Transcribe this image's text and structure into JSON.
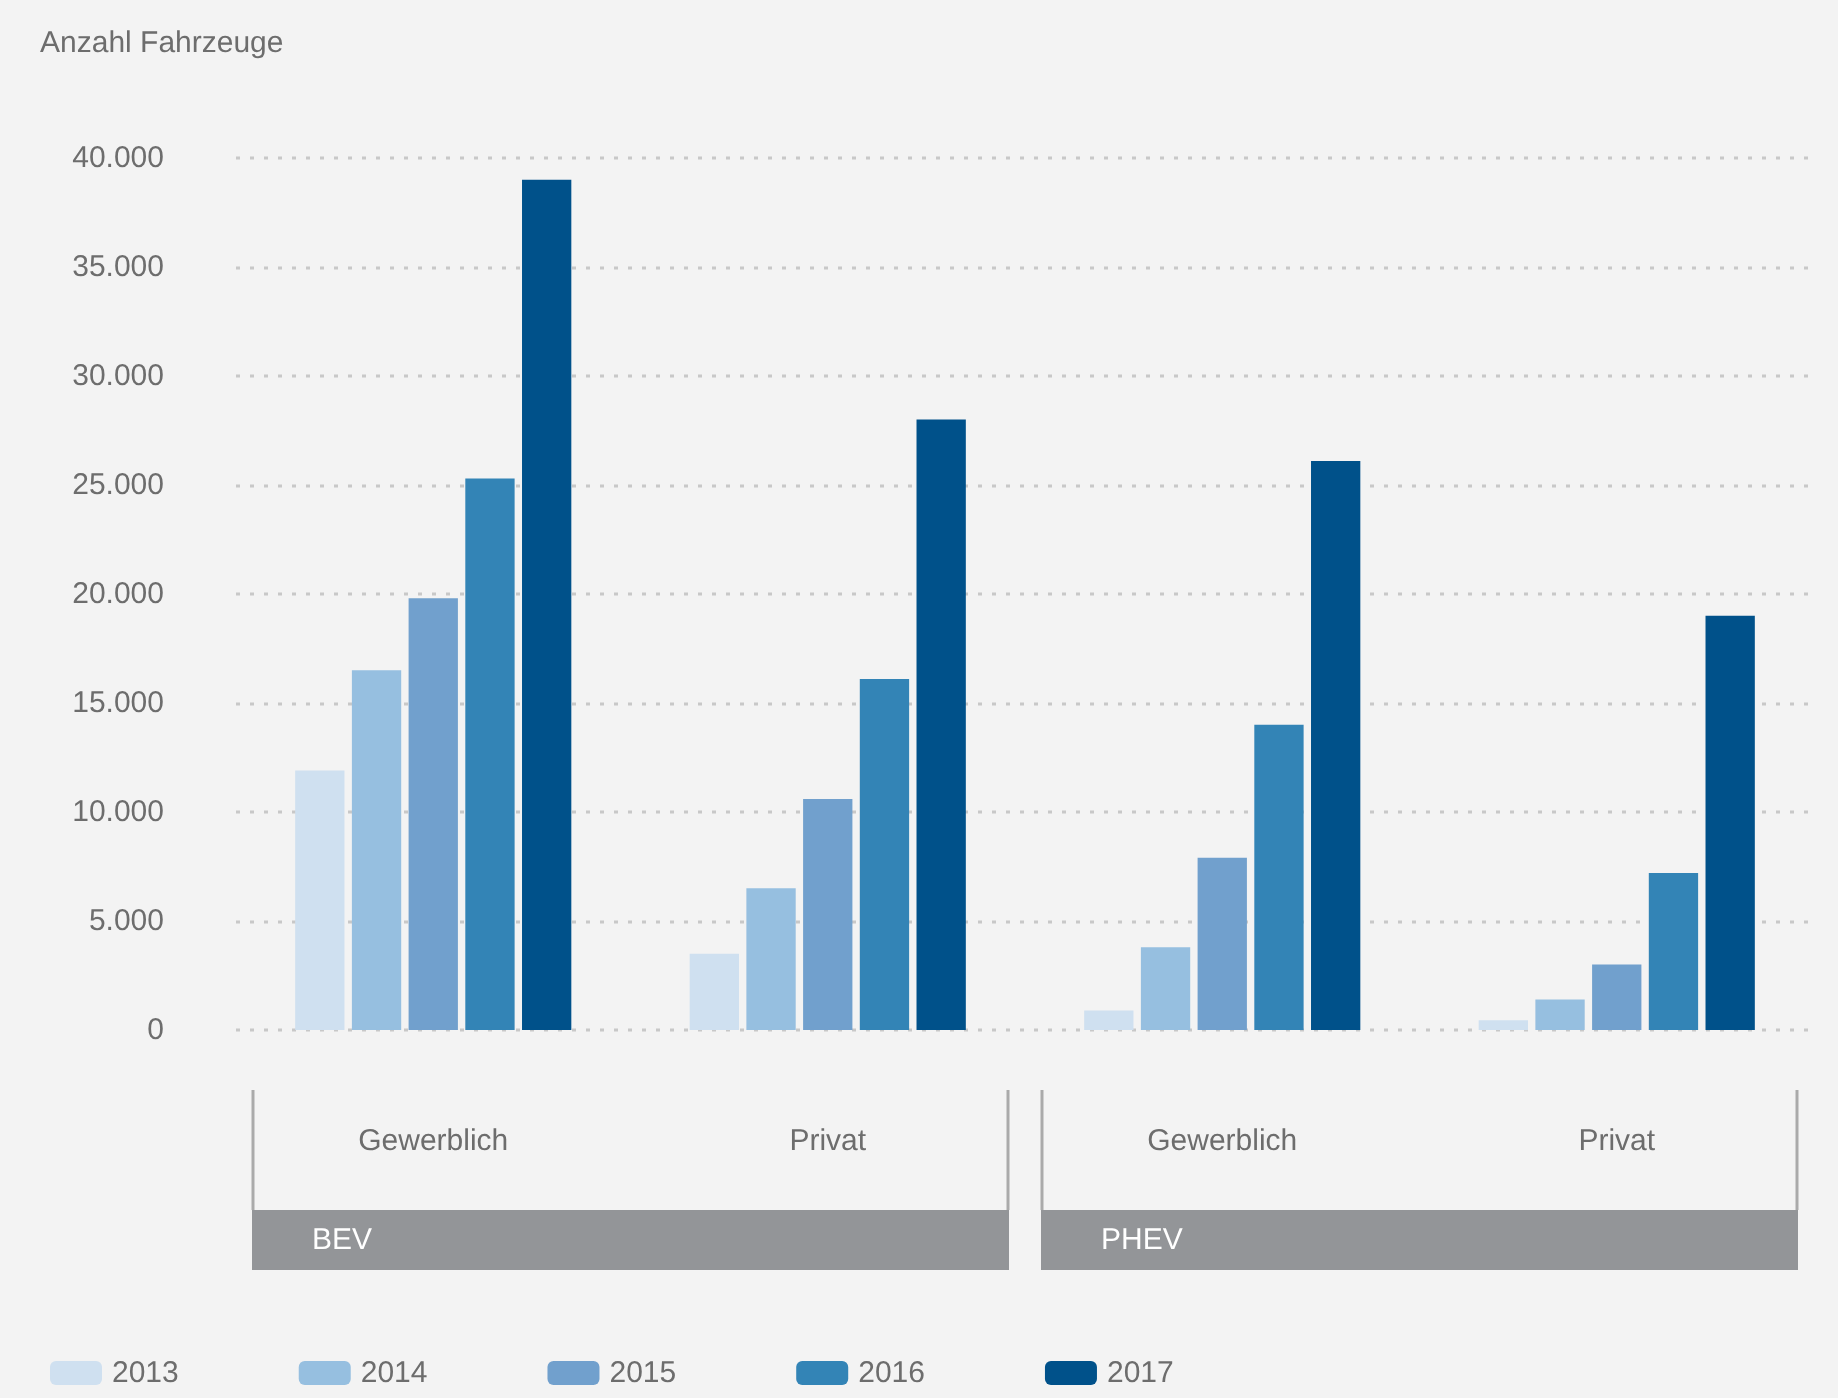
{
  "chart_data": {
    "type": "bar",
    "ylabel": "Anzahl Fahrzeuge",
    "categories": [
      "Gewerblich",
      "Privat",
      "Gewerblich",
      "Privat"
    ],
    "annotations": [
      "BEV",
      "PHEV"
    ],
    "series": [
      {
        "name": "2013",
        "color": "#cfe0f0",
        "values": [
          11900,
          3500,
          900,
          450
        ]
      },
      {
        "name": "2014",
        "color": "#96bfe0",
        "values": [
          16500,
          6500,
          3800,
          1400
        ]
      },
      {
        "name": "2015",
        "color": "#71a0cd",
        "values": [
          19800,
          10600,
          7900,
          3000
        ]
      },
      {
        "name": "2016",
        "color": "#3384b6",
        "values": [
          25300,
          16100,
          14000,
          7200
        ]
      },
      {
        "name": "2017",
        "color": "#00518a",
        "values": [
          39000,
          28000,
          26100,
          19000
        ]
      }
    ],
    "ylim": [
      0,
      40000
    ],
    "yticks": [
      {
        "value": 0,
        "label": "0"
      },
      {
        "value": 5000,
        "label": "5.000"
      },
      {
        "value": 10000,
        "label": "10.000"
      },
      {
        "value": 15000,
        "label": "15.000"
      },
      {
        "value": 20000,
        "label": "20.000"
      },
      {
        "value": 25000,
        "label": "25.000"
      },
      {
        "value": 30000,
        "label": "30.000"
      },
      {
        "value": 35000,
        "label": "35.000"
      },
      {
        "value": 40000,
        "label": "40.000"
      }
    ],
    "grid": "y",
    "legend": "bottom left"
  }
}
